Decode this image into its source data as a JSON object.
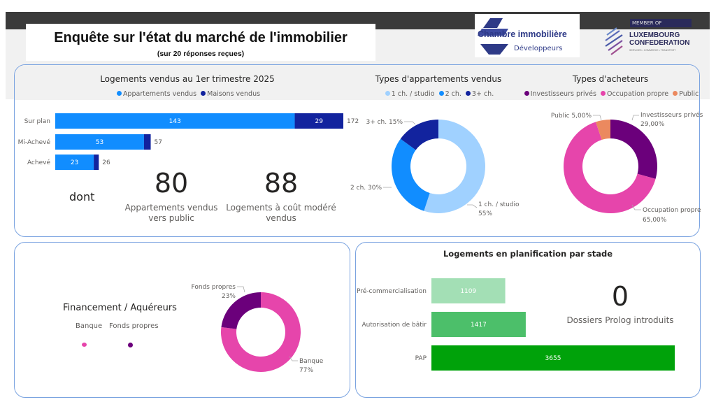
{
  "header": {
    "title": "Enquête sur l'état du marché de l'immobilier",
    "subtitle": "(sur 20 réponses reçues)"
  },
  "logos": {
    "chambre": {
      "line1": "Chambre immobilière",
      "line2": "Développeurs"
    },
    "luxembourg": {
      "member_of": "MEMBER OF",
      "line1": "LUXEMBOURG",
      "line2": "CONFEDERATION",
      "tagline": "SERVICES • COMMERCE • TRANSPORT"
    }
  },
  "kpis": {
    "dont": "dont",
    "apartments_public": {
      "value": "80",
      "label_line1": "Appartements vendus",
      "label_line2": "vers public"
    },
    "affordable": {
      "value": "88",
      "label_line1": "Logements à coût modéré",
      "label_line2": "vendus"
    },
    "prolog": {
      "value": "0",
      "label": "Dossiers Prolog introduits"
    }
  },
  "financement": {
    "title": "Financement / Aquéreurs",
    "legend": [
      {
        "label": "Banque",
        "color": "#e645ab"
      },
      {
        "label": "Fonds propres",
        "color": "#6b007b"
      }
    ]
  },
  "chart_data": [
    {
      "type": "bar",
      "stacked": true,
      "orientation": "horizontal",
      "title": "Logements vendus au 1er trimestre 2025",
      "categories": [
        "Sur plan",
        "Mi-Achevé",
        "Achevé"
      ],
      "series": [
        {
          "name": "Appartements vendus",
          "values": [
            143,
            53,
            23
          ],
          "color": "#118dff"
        },
        {
          "name": "Maisons vendus",
          "values": [
            29,
            4,
            3
          ],
          "color": "#12239e"
        }
      ],
      "totals": [
        172,
        57,
        26
      ],
      "legend": "top"
    },
    {
      "type": "pie",
      "donut": true,
      "title": "Types d'appartements vendus",
      "categories": [
        "1 ch. / studio",
        "2 ch.",
        "3+ ch."
      ],
      "values": [
        55,
        30,
        15
      ],
      "labels": [
        "1 ch. / studio 55%",
        "2 ch. 30%",
        "3+ ch. 15%"
      ],
      "colors": [
        "#a0d1ff",
        "#118dff",
        "#12239e"
      ],
      "legend": "top"
    },
    {
      "type": "pie",
      "donut": true,
      "title": "Types d'acheteurs",
      "categories": [
        "Investisseurs privés",
        "Occupation propre",
        "Public"
      ],
      "values": [
        29,
        65,
        5
      ],
      "labels": [
        "29,00%",
        "65,00%",
        "5,00%"
      ],
      "colors": [
        "#6b007b",
        "#e645ab",
        "#eb895f"
      ],
      "legend": "top"
    },
    {
      "type": "pie",
      "donut": true,
      "title": "",
      "categories": [
        "Banque",
        "Fonds propres"
      ],
      "values": [
        77,
        23
      ],
      "labels": [
        "77%",
        "23%"
      ],
      "colors": [
        "#e645ab",
        "#6b007b"
      ]
    },
    {
      "type": "bar",
      "orientation": "horizontal",
      "title": "Logements en planification par stade",
      "categories": [
        "Pré-commercialisation",
        "Autorisation de bâtir",
        "PAP"
      ],
      "values": [
        1109,
        1417,
        3655
      ],
      "colors": [
        "#a3dfb5",
        "#4cbf6a",
        "#00a20a"
      ]
    }
  ]
}
